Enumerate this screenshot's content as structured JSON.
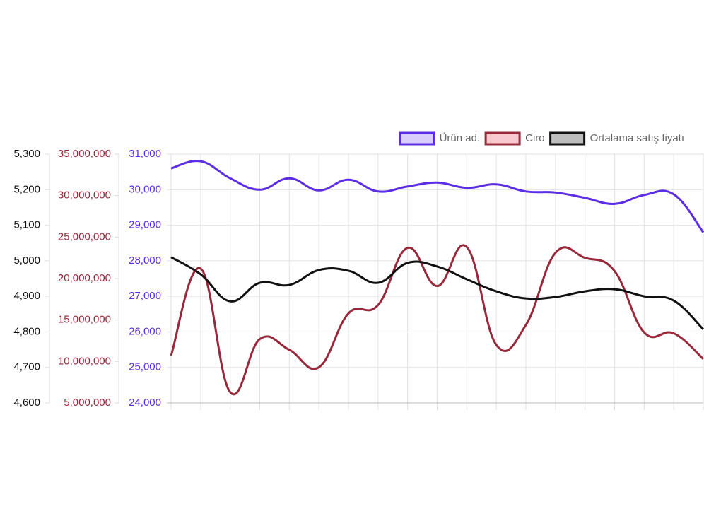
{
  "chart_data": {
    "type": "line",
    "categories": [
      null,
      null,
      null,
      null,
      null,
      null,
      null,
      null,
      null,
      null,
      null,
      null,
      null,
      null,
      null,
      null,
      null,
      null,
      null
    ],
    "series": [
      {
        "name": "Ürün ad.",
        "color": "#5b2ee6",
        "legend_fill": "#d8cdfb",
        "axis": "y3",
        "values": [
          30600,
          30800,
          30320,
          30000,
          30320,
          29980,
          30280,
          29950,
          30090,
          30200,
          30050,
          30150,
          29950,
          29920,
          29770,
          29600,
          29850,
          29870,
          28800
        ]
      },
      {
        "name": "Ciro",
        "color": "#98283a",
        "legend_fill": "#f8c9cf",
        "axis": "y2",
        "values": [
          10700000,
          21200000,
          6300000,
          12700000,
          11400000,
          9300000,
          15800000,
          16800000,
          23700000,
          19100000,
          23800000,
          12000000,
          14400000,
          23100000,
          22500000,
          20900000,
          13500000,
          13400000,
          10300000
        ]
      },
      {
        "name": "Ortalama satış fiyatı",
        "color": "#111111",
        "legend_fill": "#bdbdbd",
        "axis": "y",
        "values": [
          5010,
          4962,
          4886,
          4938,
          4932,
          4974,
          4972,
          4938,
          4994,
          4984,
          4948,
          4914,
          4894,
          4898,
          4914,
          4920,
          4900,
          4888,
          4807
        ]
      }
    ],
    "ylim": [
      4600,
      5300
    ],
    "yticks": [
      {
        "value": 4600,
        "label": "4,600"
      },
      {
        "value": 4700,
        "label": "4,700"
      },
      {
        "value": 4800,
        "label": "4,800"
      },
      {
        "value": 4900,
        "label": "4,900"
      },
      {
        "value": 5000,
        "label": "5,000"
      },
      {
        "value": 5100,
        "label": "5,100"
      },
      {
        "value": 5200,
        "label": "5,200"
      },
      {
        "value": 5300,
        "label": "5,300"
      }
    ],
    "y2lim": [
      5000000,
      35000000
    ],
    "y2ticks": [
      {
        "value": 5000000,
        "label": "5,000,000"
      },
      {
        "value": 10000000,
        "label": "10,000,000"
      },
      {
        "value": 15000000,
        "label": "15,000,000"
      },
      {
        "value": 20000000,
        "label": "20,000,000"
      },
      {
        "value": 25000000,
        "label": "25,000,000"
      },
      {
        "value": 30000000,
        "label": "30,000,000"
      },
      {
        "value": 35000000,
        "label": "35,000,000"
      }
    ],
    "y3lim": [
      24000,
      31000
    ],
    "y3ticks": [
      {
        "value": 24000,
        "label": "24,000"
      },
      {
        "value": 25000,
        "label": "25,000"
      },
      {
        "value": 26000,
        "label": "26,000"
      },
      {
        "value": 27000,
        "label": "27,000"
      },
      {
        "value": 28000,
        "label": "28,000"
      },
      {
        "value": 29000,
        "label": "29,000"
      },
      {
        "value": 30000,
        "label": "30,000"
      },
      {
        "value": 31000,
        "label": "31,000"
      }
    ],
    "grid": true,
    "legend": "top-right"
  }
}
